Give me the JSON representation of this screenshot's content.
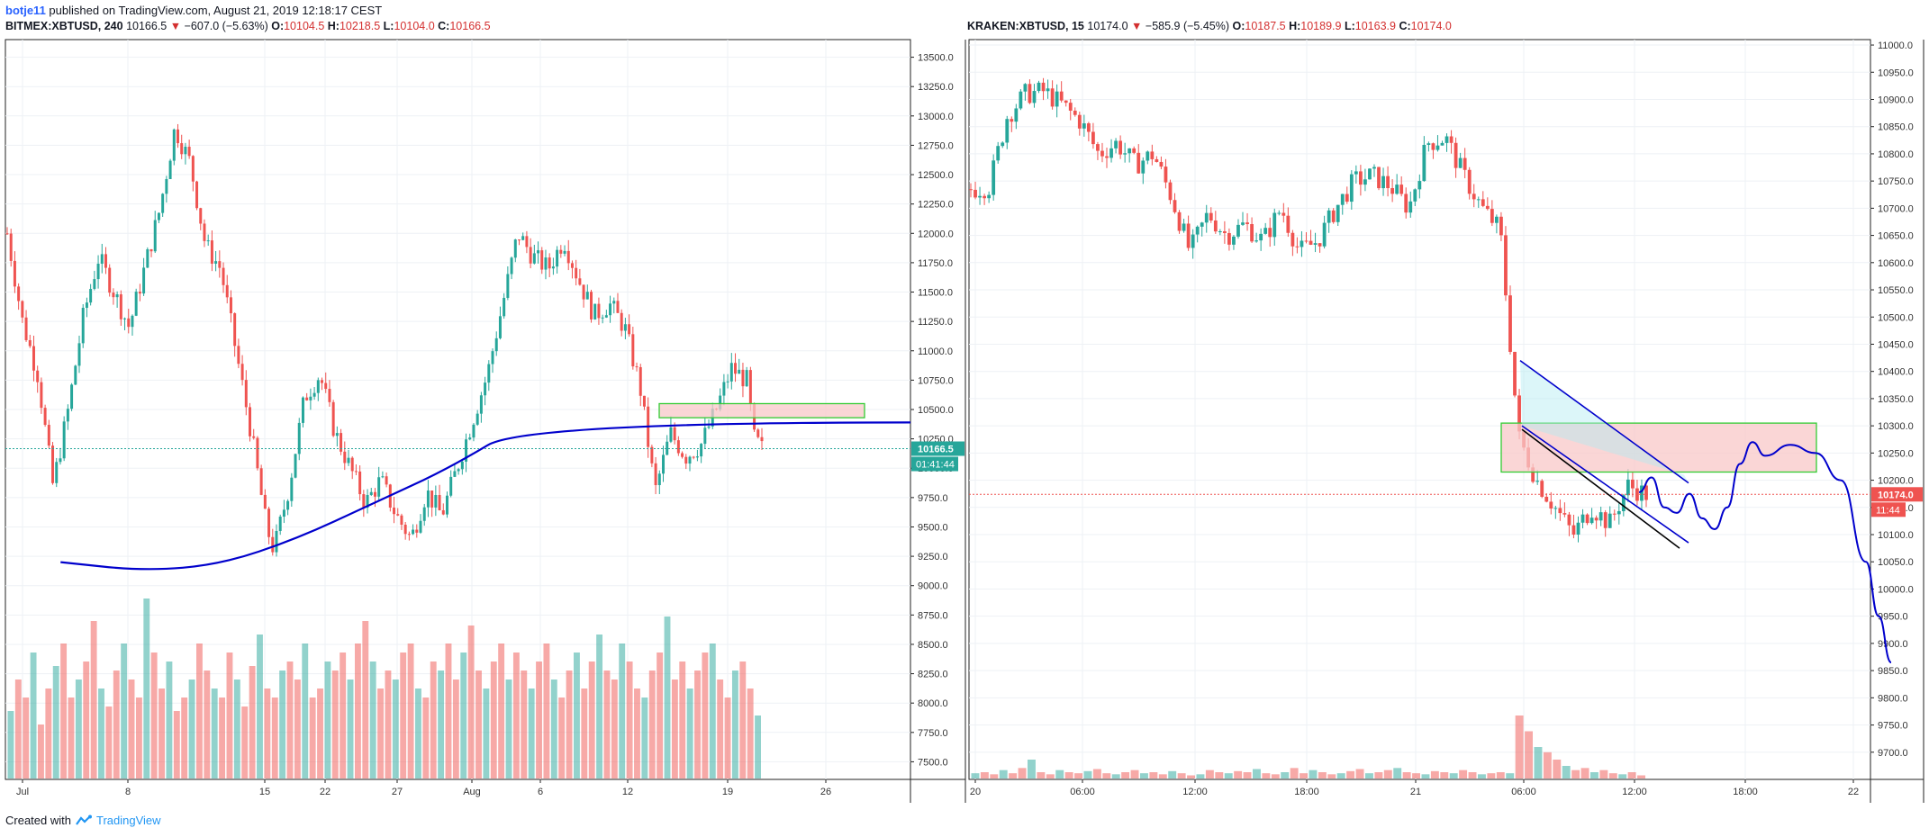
{
  "header": {
    "user": "botje11",
    "published_text": "published on TradingView.com, August 21, 2019 12:18:17 CEST"
  },
  "footer": {
    "created_with": "Created with",
    "brand": "TradingView"
  },
  "colors": {
    "up": "#26a69a",
    "down": "#ef5350",
    "trendline": "#0000cc",
    "zone_fill": "#f8c8c8",
    "zone_border": "#33cc33"
  },
  "chart_data": [
    {
      "type": "candlestick",
      "symbol": "BITMEX:XBTUSD",
      "interval": "240",
      "last": "10166.5",
      "change": "−607.0 (−5.63%)",
      "open": "10104.5",
      "high": "10218.5",
      "low": "10104.0",
      "close": "10166.5",
      "price_label": "10166.5",
      "countdown_label": "01:41:44",
      "ylim": [
        7350,
        13650
      ],
      "y_ticks": [
        "13500.0",
        "13250.0",
        "13000.0",
        "12750.0",
        "12500.0",
        "12250.0",
        "12000.0",
        "11750.0",
        "11500.0",
        "11250.0",
        "11000.0",
        "10750.0",
        "10500.0",
        "10250.0",
        "10000.0",
        "9750.0",
        "9500.0",
        "9250.0",
        "9000.0",
        "8750.0",
        "8500.0",
        "8250.0",
        "8000.0",
        "7750.0",
        "7500.0"
      ],
      "x_ticks": [
        "Jul",
        "8",
        "15",
        "22",
        "27",
        "Aug",
        "6",
        "12",
        "19",
        "26"
      ],
      "price_path": [
        [
          0,
          12000
        ],
        [
          2,
          11250
        ],
        [
          4,
          10800
        ],
        [
          6,
          9850
        ],
        [
          8,
          10500
        ],
        [
          10,
          11300
        ],
        [
          12,
          11800
        ],
        [
          14,
          11500
        ],
        [
          16,
          11200
        ],
        [
          18,
          11700
        ],
        [
          20,
          12200
        ],
        [
          22,
          12900
        ],
        [
          24,
          12600
        ],
        [
          26,
          11900
        ],
        [
          28,
          11700
        ],
        [
          30,
          11000
        ],
        [
          32,
          10300
        ],
        [
          34,
          9500
        ],
        [
          35,
          9300
        ],
        [
          37,
          9850
        ],
        [
          39,
          10600
        ],
        [
          41,
          10800
        ],
        [
          43,
          10300
        ],
        [
          45,
          10000
        ],
        [
          47,
          9700
        ],
        [
          49,
          9900
        ],
        [
          51,
          9600
        ],
        [
          53,
          9400
        ],
        [
          55,
          9800
        ],
        [
          57,
          9600
        ],
        [
          59,
          10000
        ],
        [
          61,
          10400
        ],
        [
          63,
          10800
        ],
        [
          65,
          11400
        ],
        [
          67,
          12000
        ],
        [
          69,
          11800
        ],
        [
          71,
          11700
        ],
        [
          73,
          11950
        ],
        [
          75,
          11600
        ],
        [
          77,
          11300
        ],
        [
          79,
          11400
        ],
        [
          81,
          11200
        ],
        [
          83,
          10700
        ],
        [
          85,
          9800
        ],
        [
          87,
          10300
        ],
        [
          89,
          10100
        ],
        [
          91,
          10200
        ],
        [
          93,
          10500
        ],
        [
          95,
          10850
        ],
        [
          97,
          10750
        ],
        [
          98,
          10250
        ],
        [
          99,
          10166
        ]
      ],
      "volume": [
        15,
        22,
        18,
        28,
        12,
        20,
        25,
        30,
        18,
        22,
        26,
        35,
        20,
        16,
        24,
        30,
        22,
        18,
        40,
        28,
        20,
        26,
        15,
        18,
        22,
        30,
        24,
        20,
        18,
        28,
        22,
        16,
        25,
        32,
        20,
        18,
        24,
        26,
        22,
        30,
        18,
        20,
        26,
        24,
        28,
        22,
        30,
        35,
        26,
        20,
        24,
        22,
        28,
        30,
        20,
        18,
        26,
        24,
        30,
        22,
        28,
        34,
        24,
        20,
        26,
        30,
        22,
        28,
        24,
        20,
        26,
        30,
        22,
        18,
        24,
        28,
        20,
        26,
        32,
        24,
        22,
        30,
        26,
        20,
        18,
        24,
        28,
        36,
        22,
        26,
        20,
        24,
        28,
        30,
        22,
        18,
        24,
        26,
        20,
        14
      ],
      "zone": {
        "price_low": 10430,
        "price_high": 10550
      },
      "curve": [
        [
          7,
          9200
        ],
        [
          18,
          9125
        ],
        [
          28,
          9180
        ],
        [
          38,
          9400
        ],
        [
          48,
          9700
        ],
        [
          58,
          10000
        ],
        [
          68,
          10390
        ]
      ]
    },
    {
      "type": "candlestick",
      "symbol": "KRAKEN:XBTUSD",
      "interval": "15",
      "last": "10174.0",
      "change": "−585.9 (−5.45%)",
      "open": "10187.5",
      "high": "10189.9",
      "low": "10163.9",
      "close": "10174.0",
      "price_label": "10174.0",
      "countdown_label": "11:44",
      "ylim": [
        9650,
        11010
      ],
      "y_ticks": [
        "11000.0",
        "10950.0",
        "10900.0",
        "10850.0",
        "10800.0",
        "10750.0",
        "10700.0",
        "10650.0",
        "10600.0",
        "10550.0",
        "10500.0",
        "10450.0",
        "10400.0",
        "10350.0",
        "10300.0",
        "10250.0",
        "10200.0",
        "10150.0",
        "10100.0",
        "10050.0",
        "10000.0",
        "9950.0",
        "9900.0",
        "9850.0",
        "9800.0",
        "9750.0",
        "9700.0"
      ],
      "x_ticks": [
        "20",
        "06:00",
        "12:00",
        "18:00",
        "21",
        "06:00",
        "12:00",
        "18:00",
        "22"
      ],
      "price_path": [
        [
          0,
          10735
        ],
        [
          1,
          10740
        ],
        [
          2,
          10870
        ],
        [
          3,
          10910
        ],
        [
          4,
          10915
        ],
        [
          5,
          10890
        ],
        [
          6,
          10860
        ],
        [
          7,
          10800
        ],
        [
          8,
          10820
        ],
        [
          9,
          10780
        ],
        [
          10,
          10800
        ],
        [
          11,
          10720
        ],
        [
          12,
          10620
        ],
        [
          13,
          10690
        ],
        [
          14,
          10650
        ],
        [
          15,
          10670
        ],
        [
          16,
          10640
        ],
        [
          17,
          10700
        ],
        [
          18,
          10620
        ],
        [
          19,
          10640
        ],
        [
          20,
          10700
        ],
        [
          21,
          10750
        ],
        [
          22,
          10760
        ],
        [
          23,
          10740
        ],
        [
          24,
          10700
        ],
        [
          25,
          10820
        ],
        [
          26,
          10830
        ],
        [
          27,
          10760
        ],
        [
          28,
          10700
        ],
        [
          29,
          10660
        ],
        [
          30,
          10280
        ],
        [
          31,
          10200
        ],
        [
          32,
          10150
        ],
        [
          33,
          10100
        ],
        [
          34,
          10150
        ],
        [
          35,
          10120
        ],
        [
          36,
          10190
        ],
        [
          37,
          10174
        ]
      ],
      "volume": [
        5,
        6,
        4,
        8,
        5,
        10,
        18,
        6,
        4,
        8,
        6,
        5,
        7,
        9,
        5,
        4,
        6,
        8,
        5,
        6,
        4,
        7,
        5,
        3,
        4,
        8,
        6,
        5,
        7,
        6,
        9,
        5,
        4,
        6,
        10,
        5,
        8,
        6,
        4,
        5,
        7,
        9,
        5,
        6,
        8,
        10,
        6,
        5,
        4,
        7,
        6,
        5,
        8,
        6,
        4,
        5,
        6,
        5,
        60,
        45,
        30,
        25,
        18,
        12,
        8,
        10,
        6,
        8,
        5,
        4,
        6,
        3
      ],
      "zone": {
        "price_low": 10215,
        "price_high": 10305
      },
      "forecast_path": [
        [
          38,
          10178
        ],
        [
          39,
          10205
        ],
        [
          40,
          10150
        ],
        [
          41,
          10140
        ],
        [
          42,
          10175
        ],
        [
          43,
          10130
        ],
        [
          44,
          10110
        ],
        [
          45,
          10150
        ],
        [
          46,
          10230
        ],
        [
          47,
          10270
        ],
        [
          48,
          10245
        ],
        [
          50,
          10265
        ],
        [
          52,
          10250
        ],
        [
          54,
          10200
        ],
        [
          56,
          10050
        ],
        [
          57,
          9950
        ],
        [
          58,
          9865
        ]
      ]
    }
  ]
}
